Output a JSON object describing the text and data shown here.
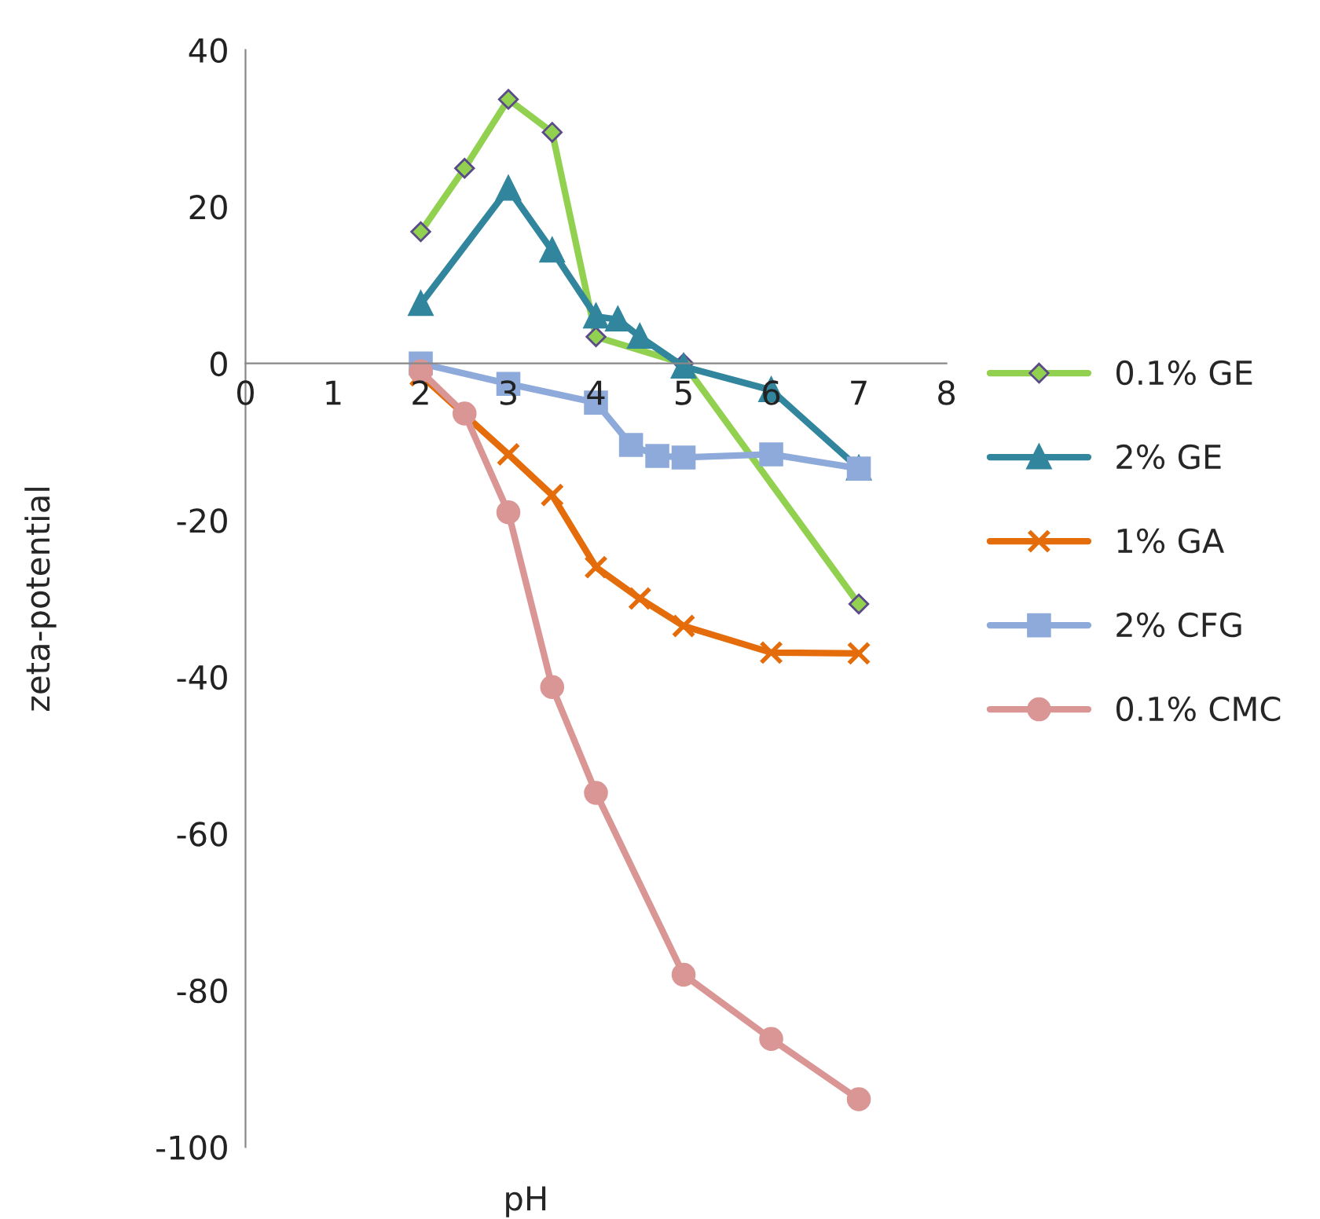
{
  "chart_data": {
    "type": "line",
    "xlabel": "pH",
    "ylabel": "zeta-potential",
    "xlim": [
      0,
      8
    ],
    "xticks": [
      0,
      1,
      2,
      3,
      4,
      5,
      6,
      7,
      8
    ],
    "ylim": [
      -100,
      40
    ],
    "yticks": [
      -100,
      -80,
      -60,
      -40,
      -20,
      0,
      20,
      40
    ],
    "grid": false,
    "legend": "right",
    "series": [
      {
        "name": "0.1% GE",
        "color": "#92d050",
        "marker": "diamond",
        "x": [
          2,
          2.5,
          3,
          3.5,
          4,
          5,
          7
        ],
        "values": [
          16.8,
          24.9,
          33.7,
          29.5,
          3.4,
          0,
          -30.7
        ]
      },
      {
        "name": "2% GE",
        "color": "#31859c",
        "marker": "triangle",
        "x": [
          2,
          3,
          3.5,
          4,
          4.25,
          4.5,
          5,
          6,
          7
        ],
        "values": [
          7.6,
          22.3,
          14.4,
          6,
          5.6,
          3.4,
          -0.4,
          -3.4,
          -13.4
        ]
      },
      {
        "name": "1% GA",
        "color": "#e46c0a",
        "marker": "cross",
        "x": [
          2,
          3,
          3.5,
          4,
          4.5,
          5,
          6,
          7
        ],
        "values": [
          -1.5,
          -11.6,
          -16.8,
          -26,
          -30,
          -33.5,
          -36.9,
          -37
        ]
      },
      {
        "name": "2% CFG",
        "color": "#8eaadb",
        "marker": "square",
        "x": [
          2,
          3,
          4,
          4.4,
          4.7,
          5,
          6,
          7
        ],
        "values": [
          0,
          -2.6,
          -5,
          -10.4,
          -11.8,
          -12,
          -11.6,
          -13.4
        ]
      },
      {
        "name": "0.1% CMC",
        "color": "#d99694",
        "marker": "circle",
        "x": [
          2,
          2.5,
          3,
          3.5,
          4,
          5,
          6,
          7
        ],
        "values": [
          -1,
          -6.4,
          -19,
          -41.3,
          -54.8,
          -78,
          -86.2,
          -93.9
        ]
      }
    ]
  }
}
